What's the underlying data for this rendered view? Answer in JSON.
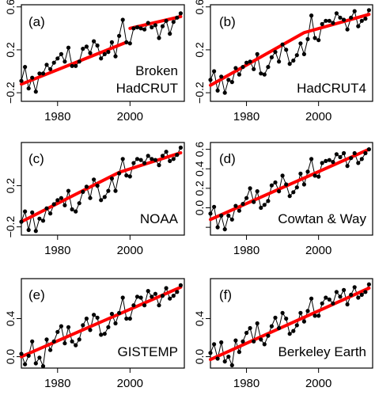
{
  "chart_data": [
    {
      "type": "line",
      "panel_label": "(a)",
      "name": "Broken\nHadCRUT",
      "xlim": [
        1970,
        2015
      ],
      "ylim": [
        -0.28,
        0.62
      ],
      "xticks": [
        1980,
        2000
      ],
      "show_xtick_labels": true,
      "yticks": [
        -0.2,
        0.2,
        0.6
      ],
      "ytick_labels": [
        "-0.2",
        "0.2",
        "0.6"
      ],
      "x": [
        1970,
        1971,
        1972,
        1973,
        1974,
        1975,
        1976,
        1977,
        1978,
        1979,
        1980,
        1981,
        1982,
        1983,
        1984,
        1985,
        1986,
        1987,
        1988,
        1989,
        1990,
        1991,
        1992,
        1993,
        1994,
        1995,
        1996,
        1997,
        1998,
        1999,
        2000,
        2001,
        2002,
        2003,
        2004,
        2005,
        2006,
        2007,
        2008,
        2009,
        2010,
        2011,
        2012,
        2013,
        2014
      ],
      "y": [
        -0.09,
        0.04,
        -0.16,
        -0.06,
        -0.19,
        -0.02,
        -0.02,
        0.06,
        0.02,
        0.08,
        0.12,
        0.16,
        0.09,
        0.22,
        0.05,
        0.05,
        0.09,
        0.21,
        0.23,
        0.17,
        0.28,
        0.24,
        0.12,
        0.16,
        0.18,
        0.27,
        0.14,
        0.33,
        0.48,
        0.27,
        0.26,
        0.4,
        0.41,
        0.4,
        0.39,
        0.45,
        0.41,
        0.43,
        0.31,
        0.42,
        0.47,
        0.35,
        0.46,
        0.5,
        0.54
      ],
      "trend": [
        {
          "x": [
            1970,
            1999
          ],
          "y": [
            -0.12,
            0.27
          ]
        },
        {
          "x": [
            2000,
            2014
          ],
          "y": [
            0.4,
            0.51
          ]
        }
      ]
    },
    {
      "type": "line",
      "panel_label": "(b)",
      "name": "HadCRUT4",
      "xlim": [
        1970,
        2015
      ],
      "ylim": [
        -0.28,
        0.62
      ],
      "xticks": [
        1980,
        2000
      ],
      "show_xtick_labels": true,
      "yticks": [
        -0.2,
        0.2,
        0.6
      ],
      "ytick_labels": [
        "-0.2",
        "0.2",
        "0.6"
      ],
      "x": [
        1970,
        1971,
        1972,
        1973,
        1974,
        1975,
        1976,
        1977,
        1978,
        1979,
        1980,
        1981,
        1982,
        1983,
        1984,
        1985,
        1986,
        1987,
        1988,
        1989,
        1990,
        1991,
        1992,
        1993,
        1994,
        1995,
        1996,
        1997,
        1998,
        1999,
        2000,
        2001,
        2002,
        2003,
        2004,
        2005,
        2006,
        2007,
        2008,
        2009,
        2010,
        2011,
        2012,
        2013,
        2014
      ],
      "y": [
        -0.08,
        0.0,
        -0.18,
        -0.05,
        -0.2,
        -0.08,
        -0.1,
        0.03,
        -0.03,
        0.04,
        0.08,
        0.09,
        0.02,
        0.16,
        -0.02,
        -0.03,
        0.04,
        0.13,
        0.18,
        0.09,
        0.25,
        0.2,
        0.07,
        0.1,
        0.15,
        0.26,
        0.16,
        0.3,
        0.52,
        0.31,
        0.29,
        0.44,
        0.47,
        0.47,
        0.45,
        0.54,
        0.5,
        0.48,
        0.39,
        0.5,
        0.56,
        0.42,
        0.47,
        0.49,
        0.57
      ],
      "trend": [
        {
          "x": [
            1970,
            1996,
            2014
          ],
          "y": [
            -0.13,
            0.36,
            0.53
          ]
        }
      ]
    },
    {
      "type": "line",
      "panel_label": "(c)",
      "name": "NOAA",
      "xlim": [
        1970,
        2015
      ],
      "ylim": [
        -0.28,
        0.62
      ],
      "xticks": [
        1980,
        2000
      ],
      "show_xtick_labels": true,
      "yticks": [
        -0.2,
        0.2
      ],
      "ytick_labels": [
        "-0.2",
        "0.2"
      ],
      "x": [
        1970,
        1971,
        1972,
        1973,
        1974,
        1975,
        1976,
        1977,
        1978,
        1979,
        1980,
        1981,
        1982,
        1983,
        1984,
        1985,
        1986,
        1987,
        1988,
        1989,
        1990,
        1991,
        1992,
        1993,
        1994,
        1995,
        1996,
        1997,
        1998,
        1999,
        2000,
        2001,
        2002,
        2003,
        2004,
        2005,
        2006,
        2007,
        2008,
        2009,
        2010,
        2011,
        2012,
        2013,
        2014
      ],
      "y": [
        -0.15,
        -0.05,
        -0.23,
        -0.06,
        -0.24,
        -0.12,
        -0.14,
        -0.02,
        -0.07,
        0.02,
        0.06,
        0.08,
        0.01,
        0.15,
        -0.03,
        -0.05,
        0.03,
        0.14,
        0.19,
        0.08,
        0.26,
        0.2,
        0.06,
        0.09,
        0.15,
        0.27,
        0.15,
        0.32,
        0.46,
        0.3,
        0.29,
        0.42,
        0.46,
        0.45,
        0.42,
        0.49,
        0.46,
        0.45,
        0.4,
        0.49,
        0.53,
        0.44,
        0.46,
        0.5,
        0.57
      ],
      "trend": [
        {
          "x": [
            1970,
            1997,
            2014
          ],
          "y": [
            -0.15,
            0.33,
            0.52
          ]
        }
      ]
    },
    {
      "type": "line",
      "panel_label": "(d)",
      "name": "Cowtan & Way",
      "xlim": [
        1970,
        2015
      ],
      "ylim": [
        -0.28,
        0.67
      ],
      "xticks": [
        1980,
        2000
      ],
      "show_xtick_labels": true,
      "yticks": [
        -0.2,
        0.0,
        0.2,
        0.4,
        0.6
      ],
      "ytick_labels": [
        "",
        "0.0",
        "0.2",
        "0.4",
        "0.6"
      ],
      "x": [
        1970,
        1971,
        1972,
        1973,
        1974,
        1975,
        1976,
        1977,
        1978,
        1979,
        1980,
        1981,
        1982,
        1983,
        1984,
        1985,
        1986,
        1987,
        1988,
        1989,
        1990,
        1991,
        1992,
        1993,
        1994,
        1995,
        1996,
        1997,
        1998,
        1999,
        2000,
        2001,
        2002,
        2003,
        2004,
        2005,
        2006,
        2007,
        2008,
        2009,
        2010,
        2011,
        2012,
        2013,
        2014
      ],
      "y": [
        -0.06,
        0.01,
        -0.2,
        -0.08,
        -0.22,
        -0.08,
        -0.12,
        0.02,
        -0.03,
        0.04,
        0.1,
        0.2,
        0.06,
        0.17,
        0.0,
        0.03,
        0.07,
        0.23,
        0.26,
        0.17,
        0.33,
        0.24,
        0.12,
        0.16,
        0.21,
        0.35,
        0.24,
        0.37,
        0.5,
        0.33,
        0.32,
        0.46,
        0.48,
        0.49,
        0.47,
        0.55,
        0.52,
        0.56,
        0.43,
        0.51,
        0.56,
        0.46,
        0.5,
        0.56,
        0.6
      ],
      "trend": [
        {
          "x": [
            1970,
            2014
          ],
          "y": [
            -0.12,
            0.6
          ]
        }
      ]
    },
    {
      "type": "line",
      "panel_label": "(e)",
      "name": "GISTEMP",
      "xlim": [
        1970,
        2015
      ],
      "ylim": [
        -0.12,
        0.82
      ],
      "xticks": [
        1980,
        2000
      ],
      "show_xtick_labels": true,
      "yticks": [
        0.0,
        0.4
      ],
      "ytick_labels": [
        "0.0",
        "0.4"
      ],
      "x": [
        1970,
        1971,
        1972,
        1973,
        1974,
        1975,
        1976,
        1977,
        1978,
        1979,
        1980,
        1981,
        1982,
        1983,
        1984,
        1985,
        1986,
        1987,
        1988,
        1989,
        1990,
        1991,
        1992,
        1993,
        1994,
        1995,
        1996,
        1997,
        1998,
        1999,
        2000,
        2001,
        2002,
        2003,
        2004,
        2005,
        2006,
        2007,
        2008,
        2009,
        2010,
        2011,
        2012,
        2013,
        2014
      ],
      "y": [
        0.03,
        -0.08,
        0.01,
        0.16,
        -0.07,
        -0.01,
        -0.1,
        0.18,
        0.07,
        0.16,
        0.26,
        0.32,
        0.14,
        0.31,
        0.16,
        0.12,
        0.18,
        0.33,
        0.4,
        0.28,
        0.44,
        0.41,
        0.23,
        0.24,
        0.31,
        0.45,
        0.35,
        0.46,
        0.62,
        0.4,
        0.4,
        0.54,
        0.63,
        0.62,
        0.54,
        0.69,
        0.63,
        0.66,
        0.54,
        0.64,
        0.72,
        0.61,
        0.64,
        0.68,
        0.75
      ],
      "trend": [
        {
          "x": [
            1970,
            2014
          ],
          "y": [
            0.0,
            0.73
          ]
        }
      ]
    },
    {
      "type": "line",
      "panel_label": "(f)",
      "name": "Berkeley Earth",
      "xlim": [
        1970,
        2015
      ],
      "ylim": [
        -0.12,
        0.82
      ],
      "xticks": [
        1980,
        2000
      ],
      "show_xtick_labels": true,
      "yticks": [
        0.0,
        0.4
      ],
      "ytick_labels": [
        "0.0",
        "0.4"
      ],
      "x": [
        1970,
        1971,
        1972,
        1973,
        1974,
        1975,
        1976,
        1977,
        1978,
        1979,
        1980,
        1981,
        1982,
        1983,
        1984,
        1985,
        1986,
        1987,
        1988,
        1989,
        1990,
        1991,
        1992,
        1993,
        1994,
        1995,
        1996,
        1997,
        1998,
        1999,
        2000,
        2001,
        2002,
        2003,
        2004,
        2005,
        2006,
        2007,
        2008,
        2009,
        2010,
        2011,
        2012,
        2013,
        2014
      ],
      "y": [
        0.04,
        0.13,
        -0.02,
        0.15,
        -0.05,
        0.0,
        -0.09,
        0.17,
        0.05,
        0.16,
        0.25,
        0.3,
        0.16,
        0.35,
        0.18,
        0.13,
        0.22,
        0.32,
        0.41,
        0.3,
        0.46,
        0.4,
        0.24,
        0.27,
        0.33,
        0.46,
        0.37,
        0.48,
        0.61,
        0.43,
        0.43,
        0.56,
        0.62,
        0.6,
        0.56,
        0.68,
        0.63,
        0.7,
        0.55,
        0.65,
        0.73,
        0.62,
        0.65,
        0.68,
        0.76
      ],
      "trend": [
        {
          "x": [
            1970,
            2014
          ],
          "y": [
            -0.03,
            0.72
          ]
        }
      ]
    }
  ]
}
